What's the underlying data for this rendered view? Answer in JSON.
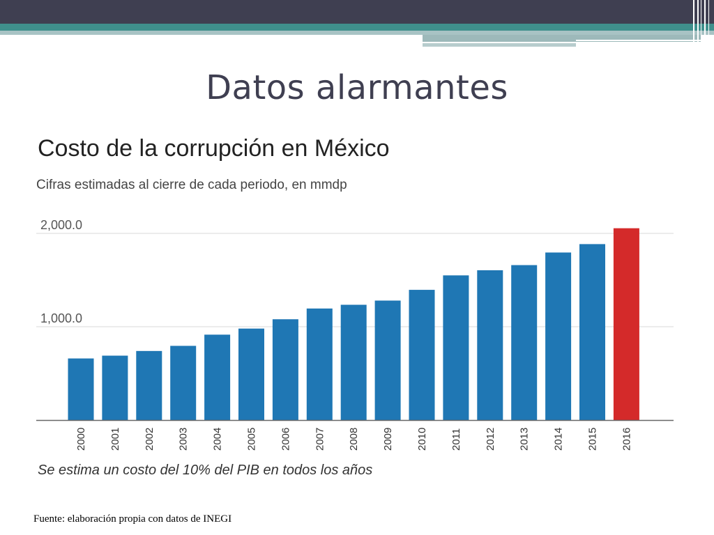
{
  "slide": {
    "title": "Datos alarmantes",
    "source": "Fuente: elaboración propia con datos de  INEGI"
  },
  "theme": {
    "dark": "#3f3f51",
    "teal": "#3f8f8c",
    "bar": "#1f77b4",
    "highlight": "#d42a2a"
  },
  "chart_data": {
    "type": "bar",
    "title": "Costo de la corrupción en México",
    "subtitle": "Cifras estimadas al cierre de cada periodo, en mmdp",
    "note": "Se estima un costo del 10% del PIB en todos los años",
    "categories": [
      "2000",
      "2001",
      "2002",
      "2003",
      "2004",
      "2005",
      "2006",
      "2007",
      "2008",
      "2009",
      "2010",
      "2011",
      "2012",
      "2013",
      "2014",
      "2015",
      "2016"
    ],
    "values": [
      660,
      690,
      740,
      795,
      915,
      980,
      1080,
      1195,
      1235,
      1280,
      1395,
      1550,
      1605,
      1660,
      1795,
      1885,
      2055
    ],
    "highlight_index": 16,
    "y_ticks": [
      {
        "value": 1000,
        "label": "1,000.0"
      },
      {
        "value": 2000,
        "label": "2,000.0"
      }
    ],
    "ylim": [
      0,
      2000
    ],
    "grid": true,
    "xlabel": "",
    "ylabel": ""
  }
}
